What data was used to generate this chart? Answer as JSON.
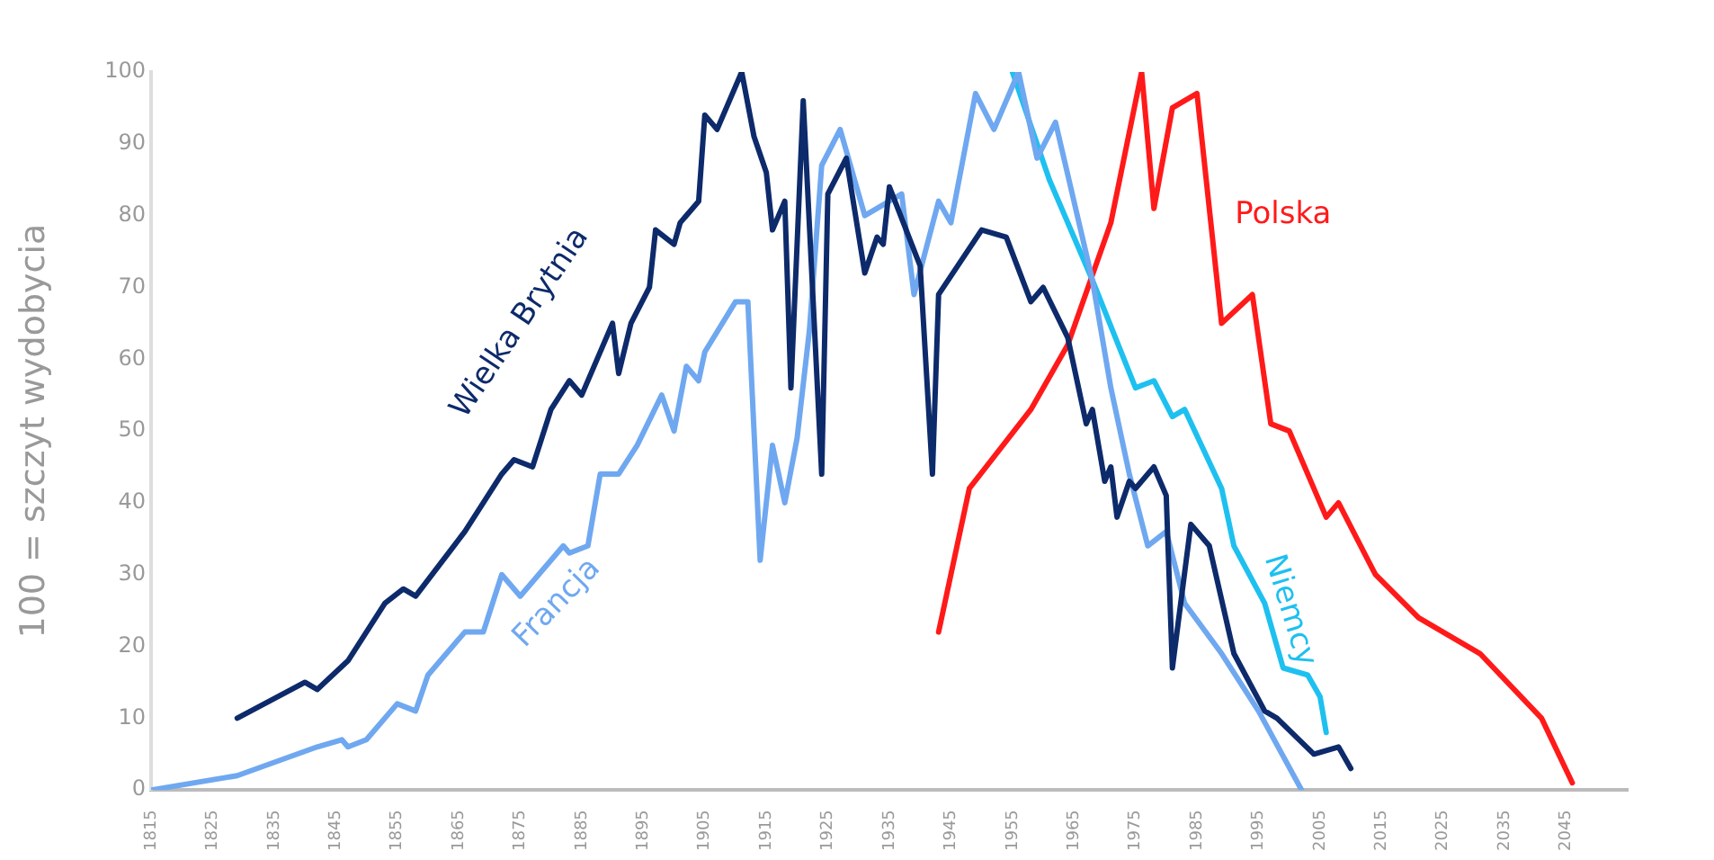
{
  "chart_data": {
    "type": "line",
    "ylabel": "100 = szczyt wydobycia",
    "xlim": [
      1815,
      2055
    ],
    "xticks": [
      1815,
      1825,
      1835,
      1845,
      1855,
      1865,
      1875,
      1885,
      1895,
      1905,
      1915,
      1925,
      1935,
      1945,
      1955,
      1965,
      1975,
      1985,
      1995,
      2005,
      2015,
      2025,
      2035,
      2045
    ],
    "ylim": [
      0,
      100
    ],
    "yticks": [
      0,
      10,
      20,
      30,
      40,
      50,
      60,
      70,
      80,
      90,
      100
    ],
    "grid": false,
    "legend": false,
    "marker": "none",
    "line_style": "solid",
    "series": [
      {
        "name": "Wielka Brytnia",
        "color": "#0d2a6b",
        "x": [
          1829,
          1840,
          1842,
          1847,
          1853,
          1856,
          1858,
          1866,
          1869,
          1872,
          1874,
          1877,
          1880,
          1883,
          1885,
          1890,
          1891,
          1893,
          1896,
          1897,
          1900,
          1901,
          1904,
          1905,
          1907,
          1911,
          1913,
          1915,
          1916,
          1918,
          1919,
          1921,
          1924,
          1925,
          1928,
          1931,
          1933,
          1934,
          1935,
          1940,
          1942,
          1943,
          1950,
          1954,
          1958,
          1960,
          1964,
          1967,
          1968,
          1970,
          1971,
          1972,
          1974,
          1975,
          1978,
          1980,
          1981,
          1984,
          1987,
          1991,
          1996,
          1998,
          2004,
          2008,
          2010
        ],
        "values": [
          10,
          15,
          14,
          18,
          26,
          28,
          27,
          36,
          40,
          44,
          46,
          45,
          53,
          57,
          55,
          65,
          58,
          65,
          70,
          78,
          76,
          79,
          82,
          94,
          92,
          100,
          91,
          86,
          78,
          82,
          56,
          96,
          44,
          83,
          88,
          72,
          77,
          76,
          84,
          73,
          44,
          69,
          78,
          77,
          68,
          70,
          63,
          51,
          53,
          43,
          45,
          38,
          43,
          42,
          45,
          41,
          17,
          37,
          34,
          19,
          11,
          10,
          5,
          6,
          3
        ]
      },
      {
        "name": "Francja",
        "color": "#6fa8f0",
        "x": [
          1815,
          1829,
          1842,
          1846,
          1847,
          1850,
          1855,
          1858,
          1860,
          1866,
          1869,
          1872,
          1875,
          1880,
          1882,
          1883,
          1886,
          1888,
          1891,
          1894,
          1898,
          1900,
          1902,
          1904,
          1905,
          1910,
          1912,
          1914,
          1916,
          1918,
          1920,
          1922,
          1924,
          1927,
          1929,
          1931,
          1937,
          1939,
          1943,
          1945,
          1947,
          1949,
          1952,
          1956,
          1959,
          1962,
          1968,
          1971,
          1974,
          1977,
          1980,
          1983,
          1989,
          1995,
          2002
        ],
        "values": [
          0,
          2,
          6,
          7,
          6,
          7,
          12,
          11,
          16,
          22,
          22,
          30,
          27,
          32,
          34,
          33,
          34,
          44,
          44,
          48,
          55,
          50,
          59,
          57,
          61,
          68,
          68,
          32,
          48,
          40,
          49,
          64,
          87,
          92,
          86,
          80,
          83,
          69,
          82,
          79,
          88,
          97,
          92,
          100,
          88,
          93,
          71,
          56,
          44,
          34,
          36,
          26,
          19,
          11,
          0
        ]
      },
      {
        "name": "Niemcy",
        "color": "#1ec0f0",
        "x": [
          1955,
          1961,
          1968,
          1975,
          1978,
          1981,
          1983,
          1989,
          1991,
          1996,
          1999,
          2003,
          2005,
          2006
        ],
        "values": [
          100,
          85,
          71,
          56,
          57,
          52,
          53,
          42,
          34,
          26,
          17,
          16,
          13,
          8
        ]
      },
      {
        "name": "Polska",
        "color": "#ff1a1a",
        "x": [
          1943,
          1948,
          1958,
          1964,
          1971,
          1976,
          1978,
          1981,
          1985,
          1989,
          1994,
          1997,
          2000,
          2006,
          2008,
          2011,
          2014,
          2021,
          2031,
          2041,
          2046
        ],
        "values": [
          22,
          42,
          53,
          62,
          79,
          100,
          81,
          95,
          97,
          65,
          69,
          51,
          50,
          38,
          40,
          35,
          30,
          24,
          19,
          10,
          1
        ]
      }
    ]
  }
}
